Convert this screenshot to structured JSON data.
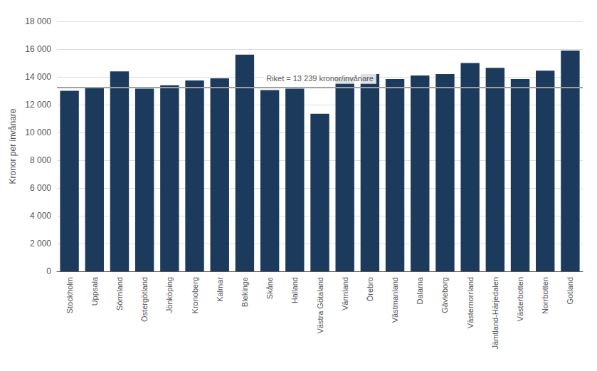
{
  "chart_data": {
    "type": "bar",
    "categories": [
      "Stockholm",
      "Uppsala",
      "Sörmland",
      "Östergötland",
      "Jönköping",
      "Kronoberg",
      "Kalmar",
      "Blekinge",
      "Skåne",
      "Halland",
      "Västra Götaland",
      "Värmland",
      "Örebro",
      "Västmanland",
      "Dalarna",
      "Gävleborg",
      "Västernorrland",
      "Jämtland-Härjedalen",
      "Västerbotten",
      "Norrbotten",
      "Gotland"
    ],
    "values": [
      13000,
      13200,
      14400,
      13150,
      13400,
      13750,
      13900,
      15600,
      13050,
      13150,
      11350,
      13950,
      14200,
      13850,
      14100,
      14200,
      15000,
      14650,
      13850,
      14450,
      15900
    ],
    "color": "#1B3A5C",
    "ylabel": "Kronor per invånare",
    "ylim": [
      0,
      18000
    ],
    "yticks": [
      0,
      {
        "value": 2000,
        "label": "2 000"
      },
      {
        "value": 4000,
        "label": "4 000"
      },
      {
        "value": 6000,
        "label": "6 000"
      },
      {
        "value": 8000,
        "label": "8 000"
      },
      {
        "value": 10000,
        "label": "10 000"
      },
      {
        "value": 12000,
        "label": "12 000"
      },
      {
        "value": 14000,
        "label": "14 000"
      },
      {
        "value": 16000,
        "label": "16 000"
      },
      {
        "value": 18000,
        "label": "18 000"
      }
    ],
    "grid": true,
    "reference_line": {
      "value": 13239,
      "label": "Riket = 13 239 kronor/invånare",
      "color": "#A0A0A0"
    }
  }
}
